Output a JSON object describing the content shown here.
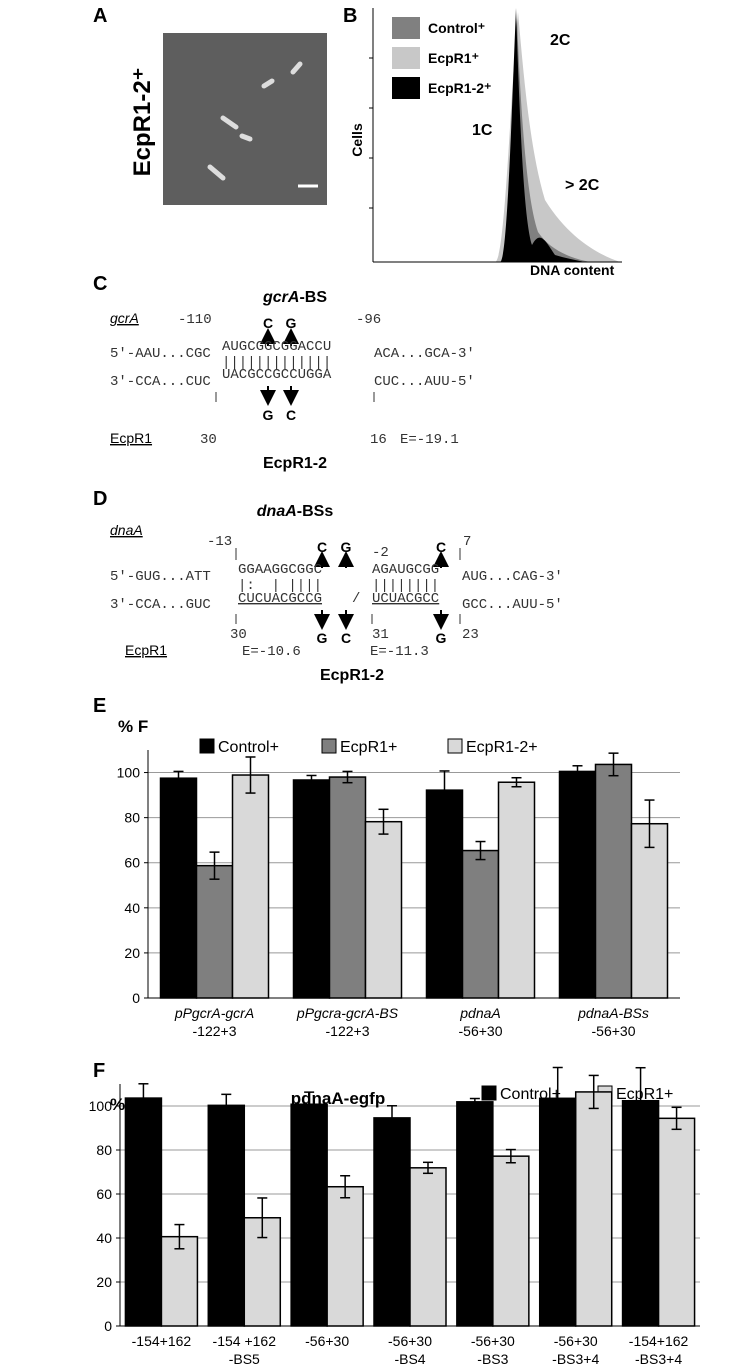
{
  "panel_labels": {
    "a": "A",
    "b": "B",
    "c": "C",
    "d": "D",
    "e": "E",
    "f": "F"
  },
  "panel_a": {
    "strain": "EcpR1-2⁺"
  },
  "panel_b": {
    "legend": [
      "Control⁺",
      "EcpR1⁺",
      "EcpR1-2⁺"
    ],
    "y_label": "Cells",
    "x_label": "DNA content",
    "peaks": [
      "1C",
      "2C",
      "> 2C"
    ]
  },
  "panel_c": {
    "title_gene": "gcrA",
    "title_suffix": "-BS",
    "gene": "gcrA",
    "rna": "EcpR1",
    "name": "EcpR1-2",
    "pos_top_left": "-110",
    "pos_top_right": "-96",
    "pos_bot_left": "30",
    "pos_bot_right": "16",
    "energy": "E=-19.1",
    "top_left": "5'-AAU...CGC",
    "top_core": "AUGCGGCGGACCU",
    "top_right": "ACA...GCA-3'",
    "pairs": "|||||||||||||",
    "bot_left": "3'-CCA...CUC",
    "bot_core": "UACGCCGCCUGGA",
    "bot_right": "CUC...AUU-5'",
    "mut_top": [
      "C",
      "G"
    ],
    "mut_bot": [
      "G",
      "C"
    ]
  },
  "panel_d": {
    "title_gene": "dnaA",
    "title_suffix": "-BSs",
    "gene": "dnaA",
    "rna": "EcpR1",
    "name": "EcpR1-2",
    "pos_top_left": "-13",
    "pos_top_mid": "-2",
    "pos_top_right": "7",
    "pos_bot_left": "30",
    "pos_bot_mid": "31",
    "pos_bot_right": "23",
    "energy_1": "E=-10.6",
    "energy_2": "E=-11.3",
    "top_left": "5'-GUG...ATT",
    "top_core_1": "GGAAGGCGGC",
    "top_core_2": "AGAUGCGG",
    "top_right": "AUG...CAG-3'",
    "pairs_1": "|:  | ||||",
    "pairs_2": "||||||||",
    "bot_left": "3'-CCA...GUC",
    "bot_core_1": "CUCUACGCCG",
    "slash": "/",
    "bot_core_2": "UCUACGCC",
    "bot_right": "GCC...AUU-5'",
    "mut_top": [
      "C",
      "G",
      "C"
    ],
    "mut_bot": [
      "G",
      "C",
      "G"
    ]
  },
  "chart_data": [
    {
      "type": "bar",
      "y_label": "% F",
      "categories": [
        "pPgcrA-gcrA\n-122+3",
        "pPgcra-gcrA-BS\n-122+3",
        "pdnaA\n-56+30",
        "pdnaA-BSs\n-56+30"
      ],
      "series": [
        {
          "name": "Control+",
          "color": "#000000",
          "values": [
            97.5,
            96.7,
            92.2,
            100.5
          ],
          "errors": [
            3,
            2,
            8.5,
            2.5
          ]
        },
        {
          "name": "EcpR1+",
          "color": "#7f7f7f",
          "values": [
            58.7,
            98.0,
            65.4,
            103.6
          ],
          "errors": [
            6,
            2.5,
            4,
            5
          ]
        },
        {
          "name": "EcpR1-2+",
          "color": "#d9d9d9",
          "values": [
            98.9,
            78.2,
            95.7,
            77.3
          ],
          "errors": [
            8,
            5.5,
            2,
            10.5
          ]
        }
      ],
      "ylim": [
        0,
        110
      ],
      "yticks": [
        0,
        20,
        40,
        60,
        80,
        100
      ],
      "grid": true
    },
    {
      "type": "bar",
      "title": "pdnaA-egfp",
      "y_label": "%F",
      "categories": [
        "-154+162",
        "-154 +162\n-BS5",
        "-56+30",
        "-56+30\n-BS4",
        "-56+30\n-BS3",
        "-56+30\n-BS3+4",
        "-154+162\n-BS3+4"
      ],
      "series": [
        {
          "name": "Control+",
          "color": "#000000",
          "values": [
            103.6,
            100.3,
            100.8,
            94.6,
            101.9,
            103.5,
            102.4
          ],
          "errors": [
            6.5,
            5,
            5.5,
            5.5,
            1.5,
            14,
            15
          ]
        },
        {
          "name": "EcpR1+",
          "color": "#d9d9d9",
          "values": [
            40.6,
            49.2,
            63.3,
            71.9,
            77.2,
            106.4,
            94.4
          ],
          "errors": [
            5.5,
            9,
            5,
            2.5,
            3,
            7.5,
            5
          ]
        }
      ],
      "ylim": [
        0,
        110
      ],
      "yticks": [
        0,
        20,
        40,
        60,
        80,
        100
      ],
      "grid": true
    }
  ]
}
